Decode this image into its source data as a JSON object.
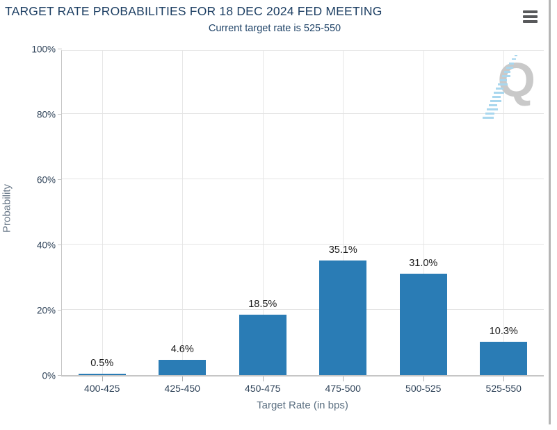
{
  "header": {
    "title": "TARGET RATE PROBABILITIES FOR 18 DEC 2024 FED MEETING",
    "subtitle": "Current target rate is 525-550",
    "menu_icon": "hamburger-icon"
  },
  "watermark": {
    "letter": "Q",
    "icon": "quikstrike-logo-icon"
  },
  "chart_data": {
    "type": "bar",
    "title": "TARGET RATE PROBABILITIES FOR 18 DEC 2024 FED MEETING",
    "subtitle": "Current target rate is 525-550",
    "categories": [
      "400-425",
      "425-450",
      "450-475",
      "475-500",
      "500-525",
      "525-550"
    ],
    "values": [
      0.5,
      4.6,
      18.5,
      35.1,
      31.0,
      10.3
    ],
    "value_labels": [
      "0.5%",
      "4.6%",
      "18.5%",
      "35.1%",
      "31.0%",
      "10.3%"
    ],
    "xlabel": "Target Rate (in bps)",
    "ylabel": "Probability",
    "ylim": [
      0,
      100
    ],
    "ytick_values": [
      0,
      20,
      40,
      60,
      80,
      100
    ],
    "ytick_labels": [
      "0%",
      "20%",
      "40%",
      "60%",
      "80%",
      "100%"
    ],
    "grid": true,
    "legend": "none",
    "bar_color": "#2a7cb5",
    "title_color": "#1d3f63",
    "gridline_color": "#e4e4e4"
  }
}
